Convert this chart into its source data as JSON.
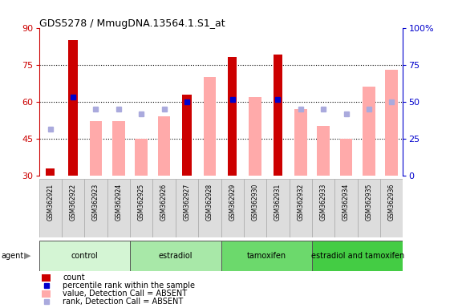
{
  "title": "GDS5278 / MmugDNA.13564.1.S1_at",
  "samples": [
    "GSM362921",
    "GSM362922",
    "GSM362923",
    "GSM362924",
    "GSM362925",
    "GSM362926",
    "GSM362927",
    "GSM362928",
    "GSM362929",
    "GSM362930",
    "GSM362931",
    "GSM362932",
    "GSM362933",
    "GSM362934",
    "GSM362935",
    "GSM362936"
  ],
  "count_values": [
    33,
    85,
    null,
    null,
    null,
    null,
    63,
    null,
    78,
    null,
    79,
    null,
    null,
    null,
    null,
    null
  ],
  "value_absent": [
    null,
    null,
    52,
    52,
    45,
    54,
    null,
    70,
    null,
    62,
    null,
    57,
    50,
    45,
    66,
    73
  ],
  "rank_present_left": [
    null,
    62,
    null,
    null,
    null,
    null,
    60,
    null,
    61,
    null,
    61,
    null,
    null,
    null,
    null,
    null
  ],
  "rank_absent_left": [
    49,
    null,
    57,
    57,
    55,
    57,
    null,
    null,
    null,
    null,
    null,
    57,
    57,
    55,
    57,
    60
  ],
  "groups": [
    {
      "label": "control",
      "start": 0,
      "end": 4,
      "color": "#d4f5d4"
    },
    {
      "label": "estradiol",
      "start": 4,
      "end": 8,
      "color": "#a8e8a8"
    },
    {
      "label": "tamoxifen",
      "start": 8,
      "end": 12,
      "color": "#6cd96c"
    },
    {
      "label": "estradiol and tamoxifen",
      "start": 12,
      "end": 16,
      "color": "#44cc44"
    }
  ],
  "ylim_left": [
    30,
    90
  ],
  "yticks_left": [
    30,
    45,
    60,
    75,
    90
  ],
  "yticks_right": [
    0,
    25,
    50,
    75,
    100
  ],
  "right_axis_labels": [
    "0",
    "25",
    "50",
    "75",
    "100%"
  ],
  "color_count": "#cc0000",
  "color_rank_present": "#0000cc",
  "color_value_absent": "#ffaaaa",
  "color_rank_absent": "#aaaadd",
  "count_bar_width": 0.4,
  "absent_bar_width": 0.55,
  "marker_size": 5,
  "left_axis_color": "#cc0000",
  "right_axis_color": "#0000cc",
  "grid_color": "black",
  "grid_style": "dotted",
  "bg_color": "white",
  "label_box_color": "#dddddd",
  "label_box_edge": "#aaaaaa"
}
